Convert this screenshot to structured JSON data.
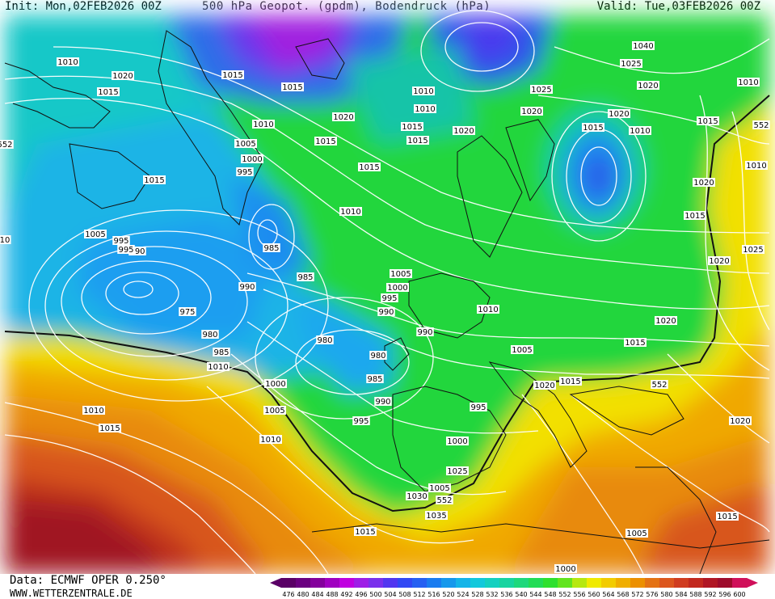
{
  "header": {
    "init": "Init: Mon,02FEB2026 00Z",
    "title": "500 hPa Geopot. (gpdm), Bodendruck (hPa)",
    "valid": "Valid: Tue,03FEB2026 00Z"
  },
  "footer": {
    "source": "Data: ECMWF OPER 0.250°",
    "website": "WWW.WETTERZENTRALE.DE"
  },
  "colors": {
    "purple": "#8a2be2",
    "blue": "#2f5de8",
    "lightblue": "#2fa6f0",
    "cyan": "#1fc4d8",
    "teal": "#14c8a0",
    "green": "#22d63c",
    "yellow": "#f3e200",
    "gold": "#f0b400",
    "orange": "#e88a10",
    "redorange": "#d85a1a",
    "red": "#c0301e",
    "darkred": "#a01424",
    "isobar": "#ffffff",
    "coast": "#111111"
  },
  "legend": {
    "ticks": [
      "476",
      "480",
      "484",
      "488",
      "492",
      "496",
      "500",
      "504",
      "508",
      "512",
      "516",
      "520",
      "524",
      "528",
      "532",
      "536",
      "540",
      "544",
      "548",
      "552",
      "556",
      "560",
      "564",
      "568",
      "572",
      "576",
      "580",
      "584",
      "588",
      "592",
      "596",
      "600"
    ],
    "colors": [
      "#5a0066",
      "#6a0080",
      "#84009c",
      "#a000c0",
      "#c000e0",
      "#9e1ee6",
      "#7a30ec",
      "#5236f0",
      "#3248f4",
      "#2660f2",
      "#1a7cf0",
      "#1698ec",
      "#14b4e8",
      "#12c8dc",
      "#14d0c0",
      "#18d4a0",
      "#1ed87c",
      "#22dc56",
      "#2ee02e",
      "#62e41e",
      "#b6e810",
      "#f0ea00",
      "#f2cc00",
      "#f0ae00",
      "#ec9000",
      "#e47214",
      "#dc561e",
      "#d03c20",
      "#c2281e",
      "#b01624",
      "#9e0c2c",
      "#d0105a"
    ]
  },
  "map": {
    "isobar_labels": [
      "1025",
      "1020",
      "1015",
      "1015",
      "1015",
      "1015",
      "1010",
      "1005",
      "1000",
      "995",
      "1015",
      "1020",
      "1015",
      "1015",
      "1010",
      "1010",
      "1005",
      "1000",
      "995",
      "990",
      "975",
      "980",
      "985",
      "990",
      "995",
      "985",
      "990",
      "985",
      "980",
      "980",
      "985",
      "990",
      "995",
      "1000",
      "1005",
      "1010",
      "1015",
      "1010",
      "1015",
      "1020",
      "1025",
      "1020",
      "1015",
      "1010",
      "1005",
      "1000",
      "995",
      "990",
      "1005",
      "1010",
      "1015",
      "1020",
      "1025",
      "1030",
      "1035",
      "1040",
      "1025",
      "1020",
      "1015",
      "1020",
      "1015",
      "1010",
      "1010",
      "1020",
      "1015",
      "1020",
      "1025",
      "1020",
      "1015",
      "1010",
      "1020",
      "1015",
      "1005",
      "1000",
      "1005",
      "995",
      "1010",
      "1010",
      "1015",
      "1020",
      "1020",
      "1015",
      "1010",
      "552",
      "552",
      "552",
      "552",
      "10",
      "1010"
    ],
    "height_labels": [
      "552",
      "552",
      "552",
      "552"
    ]
  }
}
